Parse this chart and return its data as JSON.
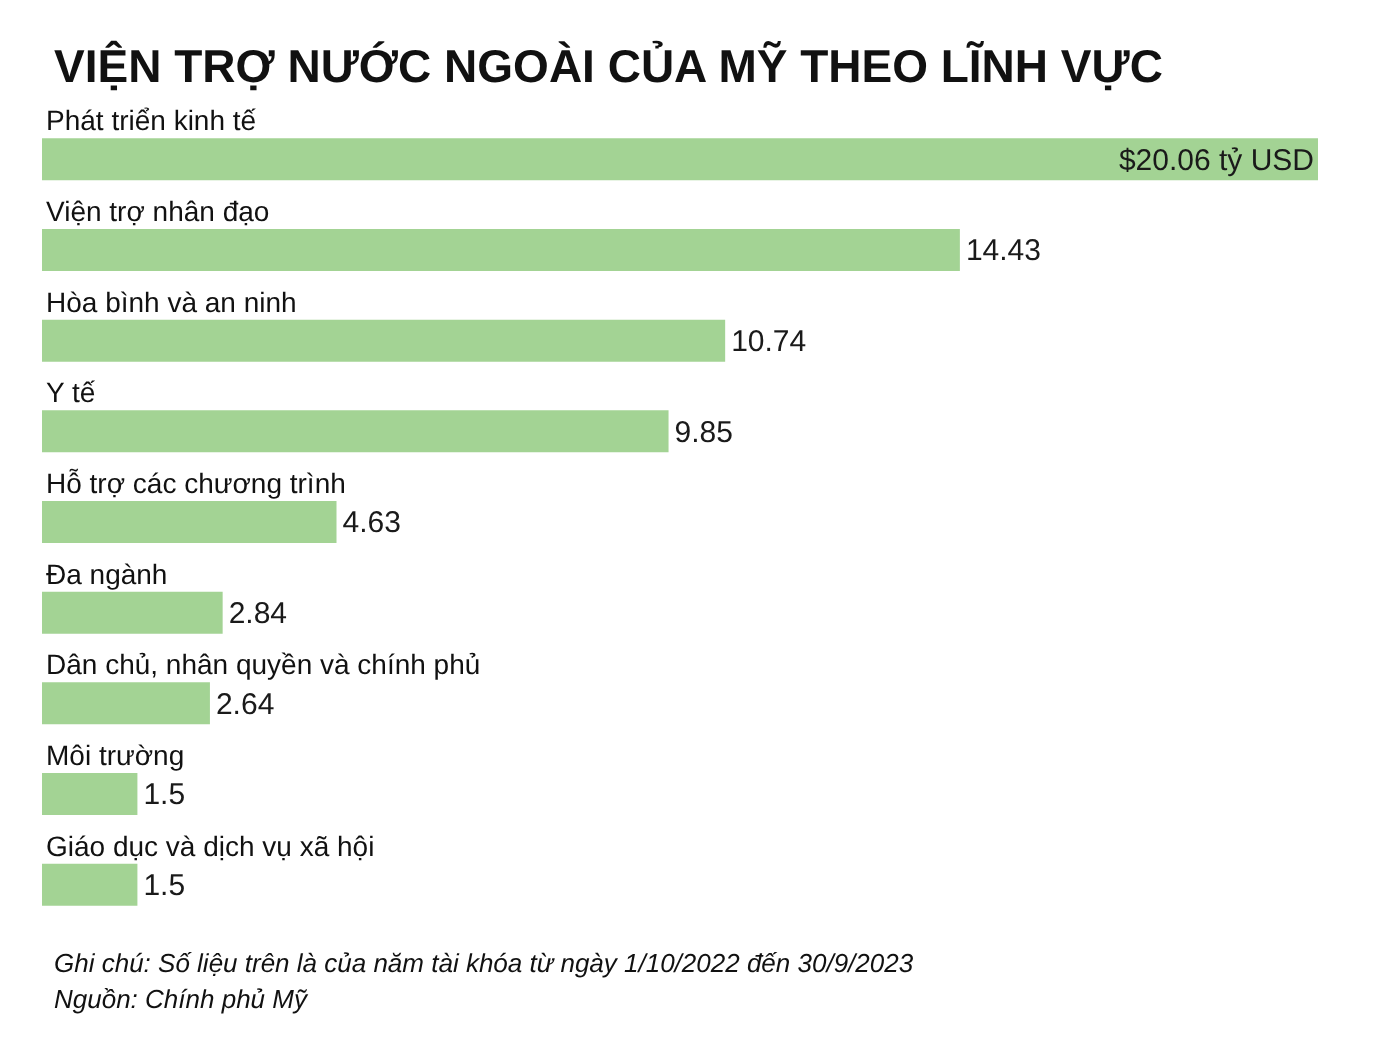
{
  "chart_data": {
    "type": "bar",
    "orientation": "horizontal",
    "title": "VIỆN TRỢ NƯỚC NGOÀI CỦA MỸ THEO LĨNH VỰC",
    "categories": [
      "Phát triển kinh tế",
      "Viện trợ nhân đạo",
      "Hòa bình và an ninh",
      "Y tế",
      "Hỗ trợ các chương trình",
      "Đa ngành",
      "Dân chủ, nhân quyền và chính phủ",
      "Môi trường",
      "Giáo dục và dịch vụ xã hội"
    ],
    "values": [
      20.06,
      14.43,
      10.74,
      9.85,
      4.63,
      2.84,
      2.64,
      1.5,
      1.5
    ],
    "value_labels": [
      "$20.06 tỷ USD",
      "14.43",
      "10.74",
      "9.85",
      "4.63",
      "2.84",
      "2.64",
      "1.5",
      "1.5"
    ],
    "color": "#a3d394",
    "tick_labels": "y",
    "annotations": [
      "Ghi chú: Số liệu trên là của năm tài khóa từ ngày 1/10/2022 đến 30/9/2023",
      "Nguồn: Chính phủ Mỹ"
    ]
  }
}
